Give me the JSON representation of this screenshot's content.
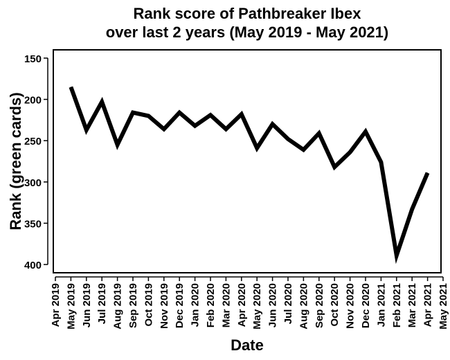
{
  "chart_data": {
    "type": "line",
    "title": [
      "Rank score of Pathbreaker Ibex",
      "over last 2 years (May 2019 - May 2021)"
    ],
    "xlabel": "Date",
    "ylabel": "Rank (green cards)",
    "y_axis_reversed": true,
    "ylim": [
      410,
      140
    ],
    "yticks": [
      150,
      200,
      250,
      300,
      350,
      400
    ],
    "xticks": [
      "Apr 2019",
      "May 2019",
      "Jun 2019",
      "Jul 2019",
      "Aug 2019",
      "Sep 2019",
      "Oct 2019",
      "Nov 2019",
      "Dec 2019",
      "Jan 2020",
      "Feb 2020",
      "Mar 2020",
      "Apr 2020",
      "May 2020",
      "Jun 2020",
      "Jul 2020",
      "Aug 2020",
      "Sep 2020",
      "Oct 2020",
      "Nov 2020",
      "Dec 2020",
      "Jan 2021",
      "Feb 2021",
      "Mar 2021",
      "Apr 2021",
      "May 2021"
    ],
    "grid": false,
    "line_color": "#000000",
    "series": [
      {
        "x": [
          "2019-05-01",
          "2019-06-01",
          "2019-07-01",
          "2019-08-01",
          "2019-09-01",
          "2019-10-01",
          "2019-11-01",
          "2019-12-01",
          "2020-01-01",
          "2020-02-01",
          "2020-03-01",
          "2020-04-01",
          "2020-05-01",
          "2020-06-01",
          "2020-07-01",
          "2020-08-01",
          "2020-09-01",
          "2020-10-01",
          "2020-11-01",
          "2020-12-01",
          "2021-01-01",
          "2021-02-01",
          "2021-03-01",
          "2021-04-01"
        ],
        "values": [
          185,
          237,
          203,
          255,
          216,
          220,
          236,
          216,
          232,
          219,
          236,
          218,
          259,
          230,
          248,
          261,
          241,
          282,
          264,
          239,
          276,
          389,
          333,
          289
        ]
      }
    ]
  }
}
